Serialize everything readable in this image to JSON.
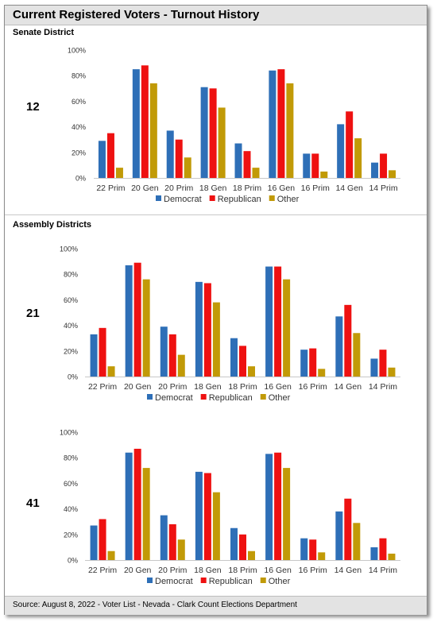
{
  "title": "Current Registered Voters - Turnout History",
  "senate": {
    "label": "Senate District",
    "number": "12"
  },
  "assembly": {
    "label": "Assembly Districts",
    "numbers": [
      "21",
      "41"
    ]
  },
  "footer": "Source: August 8, 2022 - Voter List - Nevada - Clark Count Elections Department",
  "colors": {
    "Democrat": "#2e6fb7",
    "Republican": "#ee1111",
    "Other": "#c19a07"
  },
  "chart_data": [
    {
      "type": "bar",
      "district": "12",
      "categories": [
        "22 Prim",
        "20 Gen",
        "20 Prim",
        "18 Gen",
        "18 Prim",
        "16 Gen",
        "16 Prim",
        "14 Gen",
        "14 Prim"
      ],
      "series": [
        {
          "name": "Democrat",
          "values": [
            29,
            85,
            37,
            71,
            27,
            84,
            19,
            42,
            12
          ]
        },
        {
          "name": "Republican",
          "values": [
            35,
            88,
            30,
            70,
            21,
            85,
            19,
            52,
            19
          ]
        },
        {
          "name": "Other",
          "values": [
            8,
            74,
            16,
            55,
            8,
            74,
            5,
            31,
            6
          ]
        }
      ],
      "yticks": [
        "0%",
        "20%",
        "40%",
        "60%",
        "80%",
        "100%"
      ],
      "ylim": [
        0,
        100
      ],
      "legend": "bottom"
    },
    {
      "type": "bar",
      "district": "21",
      "categories": [
        "22 Prim",
        "20 Gen",
        "20 Prim",
        "18 Gen",
        "18 Prim",
        "16 Gen",
        "16 Prim",
        "14 Gen",
        "14 Prim"
      ],
      "series": [
        {
          "name": "Democrat",
          "values": [
            33,
            87,
            39,
            74,
            30,
            86,
            21,
            47,
            14
          ]
        },
        {
          "name": "Republican",
          "values": [
            38,
            89,
            33,
            73,
            24,
            86,
            22,
            56,
            21
          ]
        },
        {
          "name": "Other",
          "values": [
            8,
            76,
            17,
            58,
            8,
            76,
            6,
            34,
            7
          ]
        }
      ],
      "yticks": [
        "0%",
        "20%",
        "40%",
        "60%",
        "80%",
        "100%"
      ],
      "ylim": [
        0,
        100
      ],
      "legend": "bottom"
    },
    {
      "type": "bar",
      "district": "41",
      "categories": [
        "22 Prim",
        "20 Gen",
        "20 Prim",
        "18 Gen",
        "18 Prim",
        "16 Gen",
        "16 Prim",
        "14 Gen",
        "14 Prim"
      ],
      "series": [
        {
          "name": "Democrat",
          "values": [
            27,
            84,
            35,
            69,
            25,
            83,
            17,
            38,
            10
          ]
        },
        {
          "name": "Republican",
          "values": [
            32,
            87,
            28,
            68,
            20,
            84,
            16,
            48,
            17
          ]
        },
        {
          "name": "Other",
          "values": [
            7,
            72,
            16,
            53,
            7,
            72,
            6,
            29,
            5
          ]
        }
      ],
      "yticks": [
        "0%",
        "20%",
        "40%",
        "60%",
        "80%",
        "100%"
      ],
      "ylim": [
        0,
        100
      ],
      "legend": "bottom"
    }
  ]
}
